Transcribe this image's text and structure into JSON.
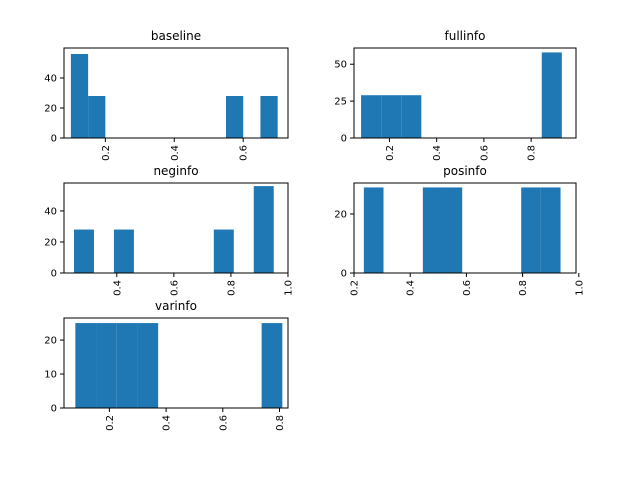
{
  "chart_data": [
    {
      "type": "bar",
      "title": "baseline",
      "xlim": [
        0.08,
        0.73
      ],
      "ylim": [
        0,
        60
      ],
      "xticks": [
        0.2,
        0.4,
        0.6
      ],
      "yticks": [
        0,
        20,
        40
      ],
      "bins": [
        {
          "x0": 0.1,
          "x1": 0.15,
          "value": 56
        },
        {
          "x0": 0.15,
          "x1": 0.2,
          "value": 28
        },
        {
          "x0": 0.2,
          "x1": 0.25,
          "value": 0
        },
        {
          "x0": 0.25,
          "x1": 0.3,
          "value": 0
        },
        {
          "x0": 0.3,
          "x1": 0.35,
          "value": 0
        },
        {
          "x0": 0.35,
          "x1": 0.4,
          "value": 0
        },
        {
          "x0": 0.4,
          "x1": 0.45,
          "value": 0
        },
        {
          "x0": 0.45,
          "x1": 0.5,
          "value": 0
        },
        {
          "x0": 0.5,
          "x1": 0.55,
          "value": 0
        },
        {
          "x0": 0.55,
          "x1": 0.6,
          "value": 28
        },
        {
          "x0": 0.6,
          "x1": 0.65,
          "value": 0
        },
        {
          "x0": 0.65,
          "x1": 0.7,
          "value": 28
        }
      ],
      "color": "#1f77b4"
    },
    {
      "type": "bar",
      "title": "fullinfo",
      "xlim": [
        0.05,
        0.99
      ],
      "ylim": [
        0,
        61
      ],
      "xticks": [
        0.2,
        0.4,
        0.6,
        0.8
      ],
      "yticks": [
        0,
        25,
        50
      ],
      "bins": [
        {
          "x0": 0.08,
          "x1": 0.165,
          "value": 29
        },
        {
          "x0": 0.165,
          "x1": 0.25,
          "value": 29
        },
        {
          "x0": 0.25,
          "x1": 0.335,
          "value": 29
        },
        {
          "x0": 0.335,
          "x1": 0.42,
          "value": 0
        },
        {
          "x0": 0.42,
          "x1": 0.505,
          "value": 0
        },
        {
          "x0": 0.505,
          "x1": 0.59,
          "value": 0
        },
        {
          "x0": 0.59,
          "x1": 0.675,
          "value": 0
        },
        {
          "x0": 0.675,
          "x1": 0.76,
          "value": 0
        },
        {
          "x0": 0.76,
          "x1": 0.845,
          "value": 0
        },
        {
          "x0": 0.845,
          "x1": 0.93,
          "value": 58
        }
      ],
      "color": "#1f77b4"
    },
    {
      "type": "bar",
      "title": "neginfo",
      "xlim": [
        0.215,
        1.0
      ],
      "ylim": [
        0,
        58
      ],
      "xticks": [
        0.4,
        0.6,
        0.8,
        1.0
      ],
      "yticks": [
        0,
        20,
        40
      ],
      "bins": [
        {
          "x0": 0.25,
          "x1": 0.32,
          "value": 28
        },
        {
          "x0": 0.32,
          "x1": 0.39,
          "value": 0
        },
        {
          "x0": 0.39,
          "x1": 0.46,
          "value": 28
        },
        {
          "x0": 0.46,
          "x1": 0.53,
          "value": 0
        },
        {
          "x0": 0.53,
          "x1": 0.6,
          "value": 0
        },
        {
          "x0": 0.6,
          "x1": 0.67,
          "value": 0
        },
        {
          "x0": 0.67,
          "x1": 0.74,
          "value": 0
        },
        {
          "x0": 0.74,
          "x1": 0.81,
          "value": 28
        },
        {
          "x0": 0.81,
          "x1": 0.88,
          "value": 0
        },
        {
          "x0": 0.88,
          "x1": 0.95,
          "value": 56
        }
      ],
      "color": "#1f77b4"
    },
    {
      "type": "bar",
      "title": "posinfo",
      "xlim": [
        0.2,
        0.99
      ],
      "ylim": [
        0,
        30.5
      ],
      "xticks": [
        0.2,
        0.4,
        0.6,
        0.8,
        1.0
      ],
      "yticks": [
        0,
        20
      ],
      "bins": [
        {
          "x0": 0.235,
          "x1": 0.305,
          "value": 29
        },
        {
          "x0": 0.305,
          "x1": 0.375,
          "value": 0
        },
        {
          "x0": 0.375,
          "x1": 0.445,
          "value": 0
        },
        {
          "x0": 0.445,
          "x1": 0.515,
          "value": 29
        },
        {
          "x0": 0.515,
          "x1": 0.585,
          "value": 29
        },
        {
          "x0": 0.585,
          "x1": 0.655,
          "value": 0
        },
        {
          "x0": 0.655,
          "x1": 0.725,
          "value": 0
        },
        {
          "x0": 0.725,
          "x1": 0.795,
          "value": 0
        },
        {
          "x0": 0.795,
          "x1": 0.865,
          "value": 29
        },
        {
          "x0": 0.865,
          "x1": 0.935,
          "value": 29
        }
      ],
      "color": "#1f77b4"
    },
    {
      "type": "bar",
      "title": "varinfo",
      "xlim": [
        0.04,
        0.83
      ],
      "ylim": [
        0,
        26.5
      ],
      "xticks": [
        0.2,
        0.4,
        0.6,
        0.8
      ],
      "yticks": [
        0,
        10,
        20
      ],
      "bins": [
        {
          "x0": 0.08,
          "x1": 0.153,
          "value": 25
        },
        {
          "x0": 0.153,
          "x1": 0.226,
          "value": 25
        },
        {
          "x0": 0.226,
          "x1": 0.299,
          "value": 25
        },
        {
          "x0": 0.299,
          "x1": 0.372,
          "value": 25
        },
        {
          "x0": 0.372,
          "x1": 0.445,
          "value": 0
        },
        {
          "x0": 0.445,
          "x1": 0.518,
          "value": 0
        },
        {
          "x0": 0.518,
          "x1": 0.591,
          "value": 0
        },
        {
          "x0": 0.591,
          "x1": 0.664,
          "value": 0
        },
        {
          "x0": 0.664,
          "x1": 0.737,
          "value": 0
        },
        {
          "x0": 0.737,
          "x1": 0.81,
          "value": 25
        }
      ],
      "color": "#1f77b4"
    }
  ]
}
